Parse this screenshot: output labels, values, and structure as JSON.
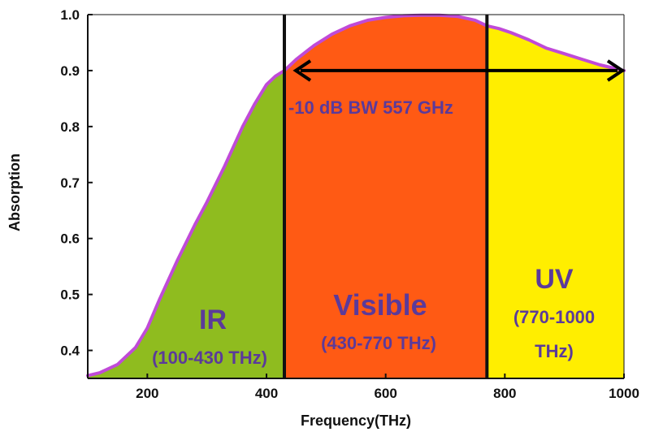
{
  "chart_data": {
    "type": "area",
    "xlabel": "Frequency(THz)",
    "ylabel": "Absorption",
    "xlim": [
      100,
      1000
    ],
    "ylim": [
      0.35,
      1.0
    ],
    "x_ticks": [
      200,
      400,
      600,
      800,
      1000
    ],
    "y_ticks": [
      0.4,
      0.5,
      0.6,
      0.7,
      0.8,
      0.9,
      1.0
    ],
    "grid": false,
    "series": [
      {
        "x": [
          100,
          120,
          150,
          180,
          200,
          220,
          250,
          280,
          300,
          330,
          360,
          380,
          400,
          415,
          430,
          450,
          480,
          510,
          540,
          570,
          600,
          630,
          660,
          690,
          720,
          750,
          770,
          790,
          810,
          840,
          870,
          900,
          930,
          960,
          1000
        ],
        "y": [
          0.355,
          0.36,
          0.375,
          0.405,
          0.44,
          0.49,
          0.56,
          0.625,
          0.665,
          0.73,
          0.8,
          0.84,
          0.875,
          0.89,
          0.9,
          0.92,
          0.945,
          0.965,
          0.98,
          0.99,
          0.995,
          0.998,
          0.999,
          0.999,
          0.997,
          0.99,
          0.98,
          0.975,
          0.968,
          0.955,
          0.94,
          0.93,
          0.92,
          0.91,
          0.9
        ]
      }
    ],
    "regions": [
      {
        "name": "IR",
        "range_label": "(100-430 THz)",
        "x_start": 100,
        "x_end": 430,
        "color": "#8fbc1f"
      },
      {
        "name": "Visible",
        "range_label": "(430-770 THz)",
        "x_start": 430,
        "x_end": 770,
        "color": "#ff5a14"
      },
      {
        "name": "UV",
        "range_label": "(770-1000 THz)",
        "x_start": 770,
        "x_end": 1000,
        "color": "#ffee00"
      }
    ],
    "curve_color": "#c04ad8",
    "annotation": {
      "text": "-10 dB BW 557 GHz",
      "arrow_from_x": 430,
      "arrow_to_x": 1000,
      "arrow_y": 0.9
    }
  },
  "texts": {
    "bw_label": "-10 dB BW 557 GHz",
    "ir_name": "IR",
    "ir_range": "(100-430 THz)",
    "vis_name": "Visible",
    "vis_range": "(430-770 THz)",
    "uv_name": "UV",
    "uv_range_1": "(770-1000",
    "uv_range_2": "THz)"
  }
}
